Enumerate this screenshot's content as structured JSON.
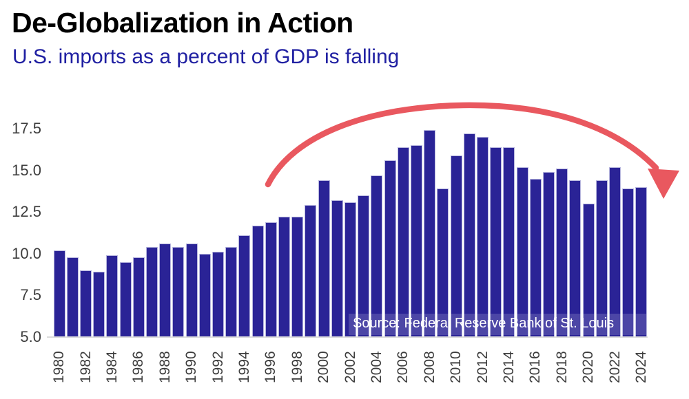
{
  "chart_data": {
    "type": "bar",
    "title": "De-Globalization in Action",
    "subtitle": "U.S. imports as a percent of GDP is falling",
    "source_note": "Source: Federal Reserve Bank of St. Louis",
    "xlabel": "",
    "ylabel": "",
    "x": [
      1980,
      1981,
      1982,
      1983,
      1984,
      1985,
      1986,
      1987,
      1988,
      1989,
      1990,
      1991,
      1992,
      1993,
      1994,
      1995,
      1996,
      1997,
      1998,
      1999,
      2000,
      2001,
      2002,
      2003,
      2004,
      2005,
      2006,
      2007,
      2008,
      2009,
      2010,
      2011,
      2012,
      2013,
      2014,
      2015,
      2016,
      2017,
      2018,
      2019,
      2020,
      2021,
      2022,
      2023,
      2024
    ],
    "values": [
      10.2,
      9.8,
      9.0,
      8.9,
      9.9,
      9.5,
      9.8,
      10.4,
      10.6,
      10.4,
      10.6,
      10.0,
      10.1,
      10.4,
      11.1,
      11.7,
      11.9,
      12.2,
      12.2,
      12.9,
      14.4,
      13.2,
      13.1,
      13.5,
      14.7,
      15.6,
      16.4,
      16.5,
      17.4,
      13.9,
      15.9,
      17.2,
      17.0,
      16.4,
      16.4,
      15.2,
      14.5,
      14.9,
      15.1,
      14.4,
      13.0,
      14.4,
      15.2,
      13.9,
      14.0
    ],
    "yticks": [
      5.0,
      7.5,
      10.0,
      12.5,
      15.0,
      17.5
    ],
    "ytick_labels": [
      "5.0",
      "7.5",
      "10.0",
      "12.5",
      "15.0",
      "17.5"
    ],
    "xtick_step": 2,
    "ylim": [
      5.0,
      19.0
    ],
    "grid": false,
    "legend": null,
    "annotation": "red curved arrow arcing from the mid-1990s rise over the 2008-2012 peak and pointing down at 2024"
  },
  "colors": {
    "background": "#ffffff",
    "title_text": "#000000",
    "subtitle_text": "#2020a2",
    "bar_fill": "#2a2396",
    "bar_border": "#b7b6de",
    "axis_text": "#3d3d3d",
    "axis_line": "#dcdcdc",
    "arrow": "#e9585f",
    "source_text": "#ffffff"
  }
}
